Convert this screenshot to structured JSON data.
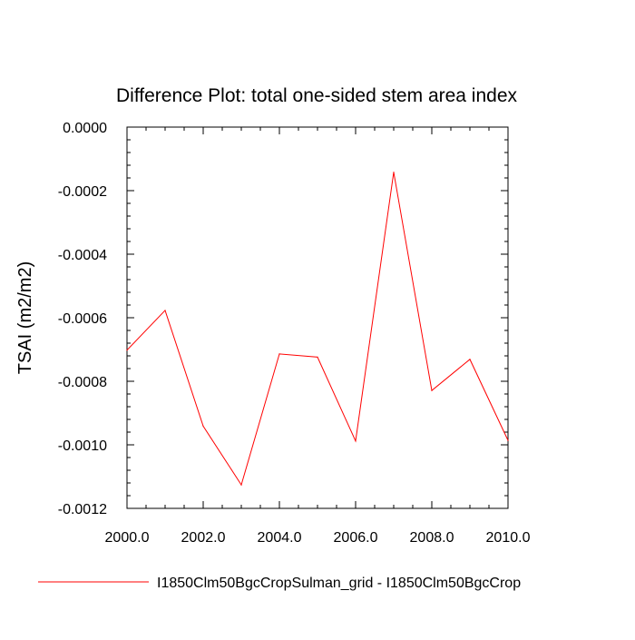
{
  "chart_data": {
    "type": "line",
    "title": "Difference Plot: total one-sided stem area index",
    "xlabel": "",
    "ylabel": "TSAI  (m2/m2)",
    "xlim": [
      2000,
      2010
    ],
    "ylim": [
      -0.0012,
      0.0
    ],
    "x_ticks": [
      2000,
      2002,
      2004,
      2006,
      2008,
      2010
    ],
    "x_tick_labels": [
      "2000.0",
      "2002.0",
      "2004.0",
      "2006.0",
      "2008.0",
      "2010.0"
    ],
    "y_ticks": [
      0.0,
      -0.0002,
      -0.0004,
      -0.0006,
      -0.0008,
      -0.001,
      -0.0012
    ],
    "y_tick_labels": [
      "0.0000",
      "-0.0002",
      "-0.0004",
      "-0.0006",
      "-0.0008",
      "-0.0010",
      "-0.0012"
    ],
    "grid": false,
    "legend_position": "bottom",
    "series": [
      {
        "name": "I1850Clm50BgcCropSulman_grid - I1850Clm50BgcCrop",
        "color": "#ff0000",
        "x": [
          2000,
          2001,
          2002,
          2003,
          2004,
          2005,
          2006,
          2007,
          2008,
          2009,
          2010
        ],
        "values": [
          -0.000702,
          -0.000577,
          -0.000941,
          -0.001126,
          -0.000714,
          -0.000724,
          -0.000988,
          -0.000142,
          -0.000829,
          -0.000731,
          -0.000986
        ]
      }
    ]
  }
}
